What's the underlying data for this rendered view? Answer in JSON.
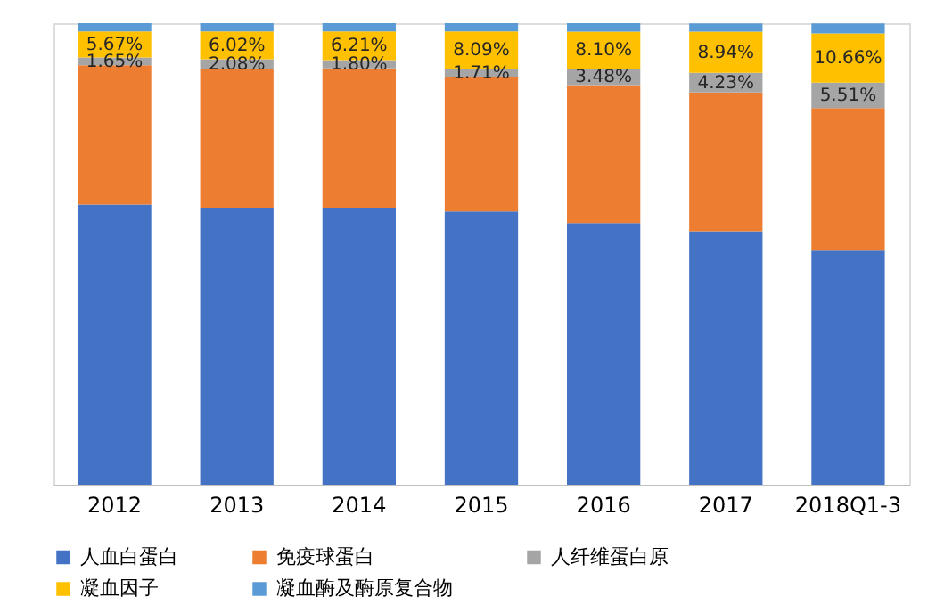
{
  "chart_data": {
    "type": "bar",
    "stacked": true,
    "categories": [
      "2012",
      "2013",
      "2014",
      "2015",
      "2016",
      "2017",
      "2018Q1-3"
    ],
    "ylim": [
      0,
      100
    ],
    "tick_labels": "x",
    "legend": "bottom",
    "series": [
      {
        "name": "人血白蛋白",
        "color": "#4472c4",
        "values": [
          60.7,
          60.0,
          60.0,
          59.2,
          56.7,
          54.9,
          50.7
        ]
      },
      {
        "name": "免疫球蛋白",
        "color": "#ed7d31",
        "values": [
          30.2,
          30.1,
          30.2,
          29.2,
          29.9,
          30.1,
          30.9
        ]
      },
      {
        "name": "人纤维蛋白原",
        "color": "#a5a5a5",
        "values": [
          1.65,
          2.08,
          1.8,
          1.71,
          3.48,
          4.23,
          5.51
        ],
        "value_labels": [
          "1.65%",
          "2.08%",
          "1.80%",
          "1.71%",
          "3.48%",
          "4.23%",
          "5.51%"
        ]
      },
      {
        "name": "凝血因子",
        "color": "#ffc000",
        "values": [
          5.67,
          6.02,
          6.21,
          8.09,
          8.1,
          8.94,
          10.66
        ],
        "value_labels": [
          "5.67%",
          "6.02%",
          "6.21%",
          "8.09%",
          "8.10%",
          "8.94%",
          "10.66%"
        ]
      },
      {
        "name": "凝血酶及酶原复合物",
        "color": "#5b9bd5",
        "values": [
          1.8,
          1.8,
          1.8,
          1.8,
          1.8,
          1.8,
          2.2
        ]
      }
    ]
  }
}
